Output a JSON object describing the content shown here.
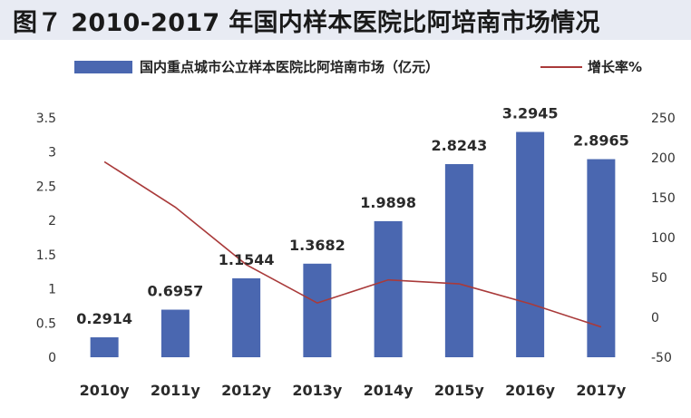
{
  "title": "图７  2010-2017 年国内样本医院比阿培南市场情况",
  "chart_data": {
    "type": "bar",
    "categories": [
      "2010y",
      "2011y",
      "2012y",
      "2013y",
      "2014y",
      "2015y",
      "2016y",
      "2017y"
    ],
    "series": [
      {
        "name": "国内重点城市公立样本医院比阿培南市场（亿元）",
        "type": "bar",
        "axis": "left",
        "color": "#4a67b0",
        "values": [
          0.2914,
          0.6957,
          1.1544,
          1.3682,
          1.9898,
          2.8243,
          3.2945,
          2.8965
        ],
        "labels": [
          "0.2914",
          "0.6957",
          "1.1544",
          "1.3682",
          "1.9898",
          "2.8243",
          "3.2945",
          "2.8965"
        ]
      },
      {
        "name": "增长率%",
        "type": "line",
        "axis": "right",
        "color": "#a93a3a",
        "values": [
          195,
          138,
          66,
          18,
          47,
          42,
          17,
          -12
        ]
      }
    ],
    "y_left": {
      "range": [
        0,
        3.5
      ],
      "ticks": [
        "0",
        "0.5",
        "1",
        "1.5",
        "2",
        "2.5",
        "3",
        "3.5"
      ]
    },
    "y_right": {
      "range": [
        -50,
        250
      ],
      "ticks": [
        "-50",
        "0",
        "50",
        "100",
        "150",
        "200",
        "250"
      ]
    },
    "legend_position": "top",
    "grid": false
  }
}
